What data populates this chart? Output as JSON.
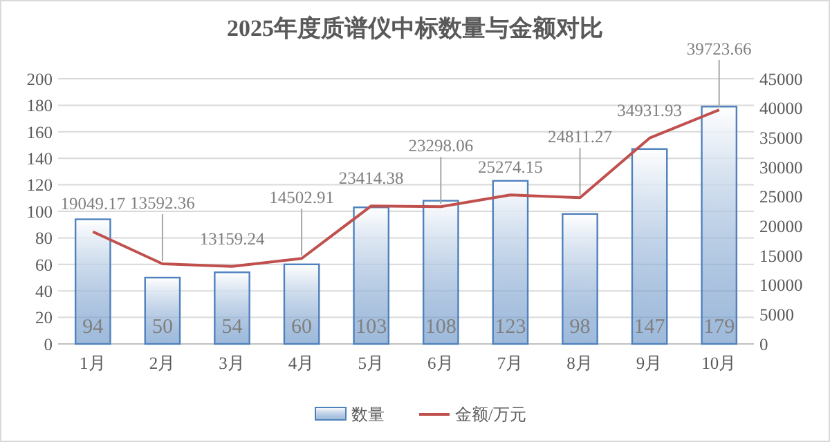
{
  "chart_data": {
    "type": "bar",
    "title": "2025年度质谱仪中标数量与金额对比",
    "categories": [
      "1月",
      "2月",
      "3月",
      "4月",
      "5月",
      "6月",
      "7月",
      "8月",
      "9月",
      "10月"
    ],
    "series": [
      {
        "name": "数量",
        "color": "#4f81bd",
        "values": [
          94,
          50,
          54,
          60,
          103,
          108,
          123,
          98,
          147,
          179
        ]
      },
      {
        "name": "金额/万元",
        "type": "line",
        "axis": "y2",
        "color": "#c0504d",
        "values": [
          19049.17,
          13592.36,
          13159.24,
          14502.91,
          23414.38,
          23298.06,
          25274.15,
          24811.27,
          34931.93,
          39723.66
        ]
      }
    ],
    "ylim": [
      0,
      200
    ],
    "yticks": [
      0,
      20,
      40,
      60,
      80,
      100,
      120,
      140,
      160,
      180,
      200
    ],
    "y2lim": [
      0,
      45000
    ],
    "y2ticks": [
      0,
      5000,
      10000,
      15000,
      20000,
      25000,
      30000,
      35000,
      40000,
      45000
    ],
    "grid": "y",
    "legend": "bottom",
    "data_labels": true,
    "marker": "none",
    "line_style": "solid"
  }
}
